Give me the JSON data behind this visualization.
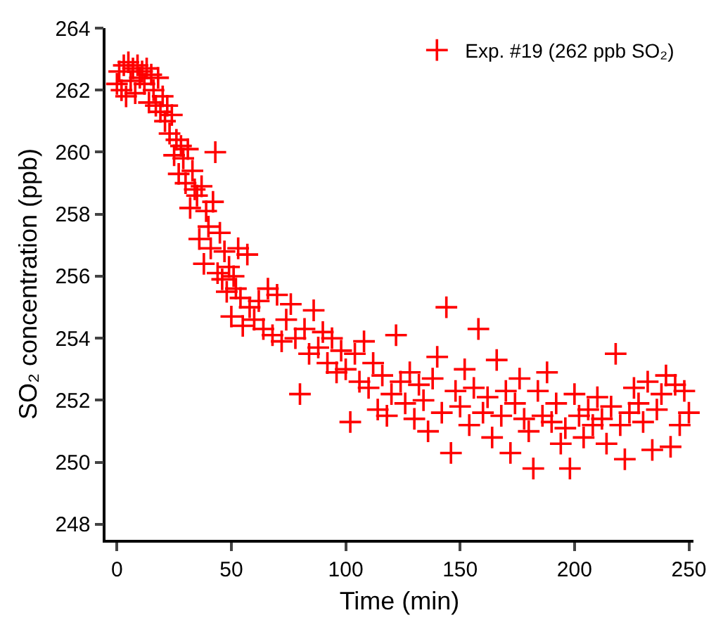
{
  "chart_data": {
    "type": "scatter",
    "xlabel": "Time (min)",
    "ylabel": "SO₂ concentration (ppb)",
    "xlim": [
      -5,
      252
    ],
    "ylim": [
      247.5,
      264
    ],
    "xticks": [
      0,
      50,
      100,
      150,
      200,
      250
    ],
    "yticks": [
      248,
      250,
      252,
      254,
      256,
      258,
      260,
      262,
      264
    ],
    "grid": false,
    "legend": "top right",
    "marker": "cross",
    "series": [
      {
        "name": "Exp. #19 (262 ppb SO₂)",
        "color": "#ff0000",
        "x": [
          0,
          1,
          2,
          3,
          4,
          5,
          6,
          7,
          8,
          9,
          10,
          11,
          12,
          13,
          14,
          15,
          16,
          17,
          18,
          19,
          20,
          21,
          22,
          23,
          24,
          25,
          26,
          27,
          28,
          29,
          30,
          31,
          32,
          33,
          34,
          35,
          36,
          37,
          38,
          39,
          40,
          41,
          42,
          43,
          44,
          45,
          46,
          47,
          48,
          49,
          50,
          51,
          52,
          53,
          54,
          55,
          57,
          58,
          60,
          62,
          64,
          66,
          68,
          70,
          72,
          74,
          76,
          78,
          80,
          82,
          84,
          86,
          88,
          90,
          92,
          94,
          96,
          98,
          100,
          102,
          104,
          106,
          108,
          110,
          112,
          114,
          116,
          118,
          120,
          122,
          124,
          126,
          128,
          130,
          132,
          134,
          136,
          138,
          140,
          142,
          144,
          146,
          148,
          150,
          152,
          154,
          156,
          158,
          160,
          162,
          164,
          166,
          168,
          170,
          172,
          174,
          176,
          178,
          180,
          182,
          184,
          186,
          188,
          190,
          192,
          194,
          196,
          198,
          200,
          202,
          204,
          206,
          208,
          210,
          212,
          214,
          216,
          218,
          220,
          222,
          224,
          226,
          228,
          230,
          232,
          234,
          236,
          238,
          240,
          242,
          244,
          246,
          248,
          250
        ],
        "values": [
          262.2,
          262.6,
          262.0,
          262.8,
          261.8,
          262.9,
          262.3,
          262.7,
          261.9,
          262.8,
          262.4,
          262.6,
          262.2,
          262.7,
          261.6,
          262.5,
          262.0,
          261.5,
          262.4,
          261.3,
          261.8,
          261.0,
          261.5,
          260.6,
          261.2,
          259.9,
          260.4,
          259.3,
          260.2,
          259.8,
          259.0,
          260.1,
          258.2,
          259.4,
          258.8,
          258.6,
          257.2,
          258.9,
          256.4,
          258.1,
          257.6,
          256.9,
          258.4,
          260.0,
          256.1,
          257.4,
          255.9,
          256.8,
          255.5,
          256.3,
          254.7,
          256.0,
          255.6,
          256.9,
          255.3,
          254.4,
          256.7,
          255.0,
          254.6,
          255.2,
          254.3,
          255.6,
          254.1,
          255.4,
          253.9,
          254.6,
          255.1,
          254.0,
          252.2,
          254.3,
          253.5,
          254.9,
          253.7,
          254.2,
          253.2,
          254.0,
          252.9,
          253.6,
          253.0,
          251.3,
          253.5,
          252.6,
          253.9,
          252.4,
          253.2,
          251.7,
          252.8,
          251.5,
          252.2,
          254.1,
          252.6,
          251.9,
          252.9,
          251.4,
          252.5,
          252.0,
          251.0,
          252.7,
          253.4,
          251.6,
          255.0,
          250.3,
          252.3,
          251.8,
          253.0,
          251.2,
          252.4,
          254.3,
          251.6,
          252.1,
          250.8,
          253.3,
          251.5,
          252.3,
          250.3,
          251.9,
          252.7,
          251.4,
          251.0,
          249.8,
          252.3,
          251.5,
          252.9,
          251.3,
          251.9,
          250.6,
          251.1,
          249.8,
          252.2,
          251.5,
          250.8,
          251.7,
          251.2,
          252.1,
          251.4,
          250.6,
          251.8,
          253.5,
          251.2,
          250.1,
          251.6,
          252.4,
          251.9,
          251.3,
          252.6,
          250.4,
          251.7,
          252.2,
          252.8,
          250.5,
          252.5,
          251.2,
          252.3,
          251.6
        ]
      }
    ]
  }
}
